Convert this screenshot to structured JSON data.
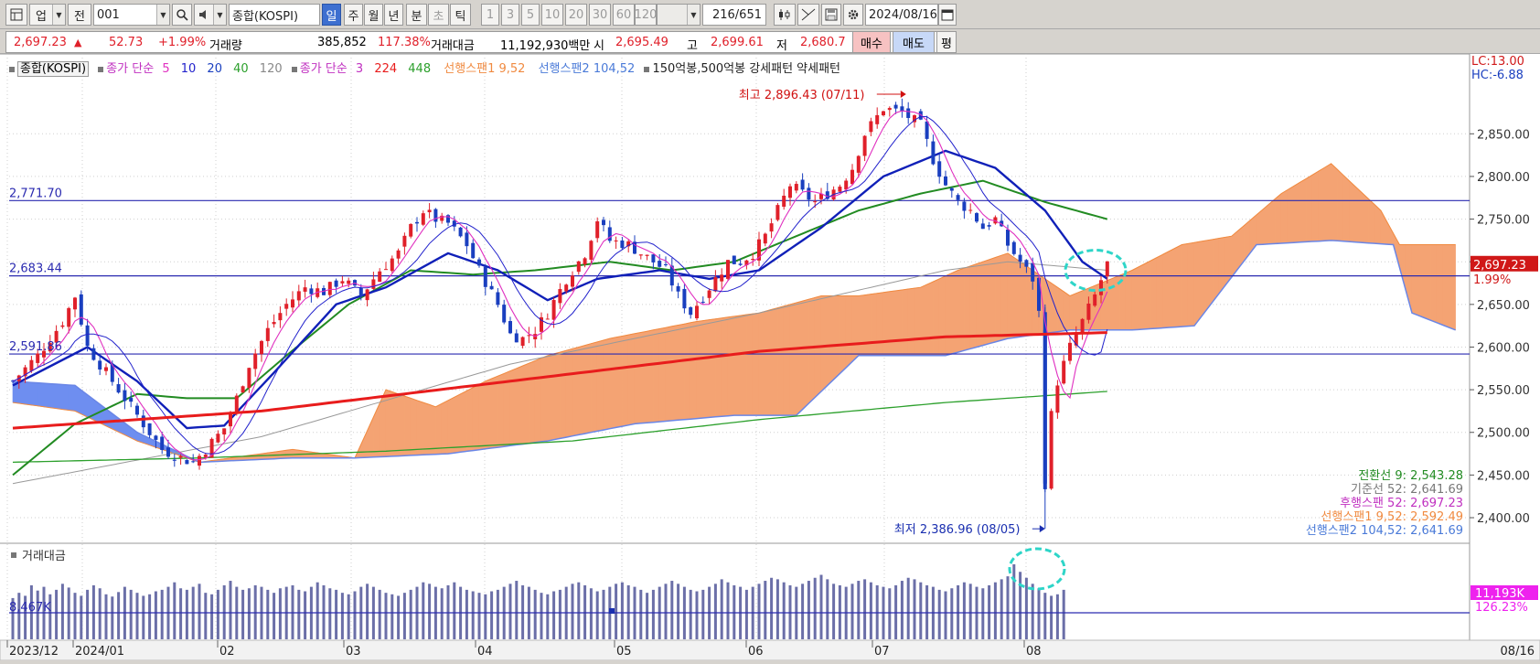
{
  "toolbar": {
    "market_label": "업",
    "view_label": "전",
    "code_value": "001",
    "name_value": "종합(KOSPI)",
    "periods": [
      "일",
      "주",
      "월",
      "년",
      "분",
      "초",
      "틱"
    ],
    "intervals": [
      "1",
      "3",
      "5",
      "10",
      "20",
      "30",
      "60",
      "120"
    ],
    "count_label": "216/651",
    "date_value": "2024/08/16"
  },
  "quote": {
    "price": "2,697.23",
    "up_arrow": "▲",
    "change": "52.73",
    "change_pct": "+1.99%",
    "volume_label": "거래량",
    "volume_value": "385,852",
    "volume_ratio": "117.38%",
    "amount_label": "거래대금",
    "amount_value": "11,192,930백만",
    "open_label": "시",
    "open_value": "2,695.49",
    "high_label": "고",
    "high_value": "2,699.61",
    "low_label": "저",
    "low_value": "2,680.7",
    "buy_label": "매수",
    "sell_label": "매도",
    "eval_label": "평"
  },
  "legend": {
    "index_name": "종합(KOSPI)",
    "ma_close_label": "종가 단순",
    "ma_short": [
      "5",
      "10",
      "20",
      "40",
      "120"
    ],
    "ma_close_label2": "종가 단순",
    "ma_long": [
      "3",
      "224",
      "448"
    ],
    "span1": "선행스팬1 9,52",
    "span2": "선행스팬2 104,52",
    "pattern": "150억봉,500억봉 강세패턴 약세패턴"
  },
  "corner": {
    "lc": "LC:13.00",
    "hc": "HC:-6.88"
  },
  "annotations": {
    "high": "최고 2,896.43 (07/11)",
    "low": "최저 2,386.96 (08/05)",
    "line1": "2,771.70",
    "line2": "2,683.44",
    "line3": "2,591.86"
  },
  "ichimoku_values": [
    "전환선 9: 2,543.28",
    "기준선 52: 2,641.69",
    "후행스팬 52: 2,697.23",
    "선행스팬1 9,52: 2,592.49",
    "선행스팬2 104,52: 2,641.69"
  ],
  "price_badge": {
    "value": "2,697.23",
    "pct": "1.99%"
  },
  "volume_panel": {
    "title": "거래대금",
    "ref_label": "8,467K",
    "badge_value": "11,193K",
    "badge_pct": "126.23%"
  },
  "colors": {
    "up": "#e0202a",
    "down": "#1a3fbf",
    "cloud_orange": "#f4a373",
    "cloud_blue": "#6e8ef0",
    "ma224": "#e81c1c",
    "ma448": "#2ca02c",
    "volume_bar": "#6b6fa8",
    "highlight": "#2ed5c8"
  },
  "chart_data": {
    "type": "candlestick",
    "x_tick_labels": [
      "2023/12",
      "2024/01",
      "02",
      "03",
      "04",
      "05",
      "06",
      "07",
      "08",
      "08/16"
    ],
    "y_tick_labels": [
      "2,850.00",
      "2,800.00",
      "2,750.00",
      "2,700.00",
      "2,650.00",
      "2,600.00",
      "2,550.00",
      "2,500.00",
      "2,450.00",
      "2,400.00"
    ],
    "ylim": [
      2370,
      2920
    ],
    "horizontal_lines": [
      2771.7,
      2683.44,
      2591.86
    ],
    "close_path": [
      [
        0,
        2560
      ],
      [
        4,
        2590
      ],
      [
        8,
        2630
      ],
      [
        10,
        2660
      ],
      [
        12,
        2600
      ],
      [
        16,
        2560
      ],
      [
        20,
        2520
      ],
      [
        24,
        2480
      ],
      [
        27,
        2470
      ],
      [
        29,
        2465
      ],
      [
        31,
        2480
      ],
      [
        34,
        2505
      ],
      [
        36,
        2540
      ],
      [
        38,
        2580
      ],
      [
        41,
        2620
      ],
      [
        44,
        2650
      ],
      [
        47,
        2670
      ],
      [
        50,
        2665
      ],
      [
        53,
        2680
      ],
      [
        56,
        2660
      ],
      [
        59,
        2690
      ],
      [
        62,
        2710
      ],
      [
        64,
        2740
      ],
      [
        66,
        2760
      ],
      [
        68,
        2750
      ],
      [
        70,
        2745
      ],
      [
        73,
        2720
      ],
      [
        75,
        2690
      ],
      [
        78,
        2650
      ],
      [
        80,
        2615
      ],
      [
        82,
        2610
      ],
      [
        84,
        2620
      ],
      [
        86,
        2640
      ],
      [
        89,
        2680
      ],
      [
        92,
        2710
      ],
      [
        94,
        2750
      ],
      [
        96,
        2725
      ],
      [
        99,
        2720
      ],
      [
        101,
        2710
      ],
      [
        103,
        2700
      ],
      [
        105,
        2690
      ],
      [
        107,
        2660
      ],
      [
        109,
        2640
      ],
      [
        111,
        2660
      ],
      [
        113,
        2680
      ],
      [
        115,
        2700
      ],
      [
        117,
        2700
      ],
      [
        119,
        2710
      ],
      [
        121,
        2730
      ],
      [
        123,
        2760
      ],
      [
        125,
        2790
      ],
      [
        127,
        2780
      ],
      [
        129,
        2770
      ],
      [
        131,
        2780
      ],
      [
        133,
        2790
      ],
      [
        135,
        2810
      ],
      [
        137,
        2850
      ],
      [
        140,
        2880
      ],
      [
        143,
        2875
      ],
      [
        146,
        2860
      ],
      [
        148,
        2820
      ],
      [
        150,
        2790
      ],
      [
        152,
        2770
      ],
      [
        154,
        2760
      ],
      [
        156,
        2740
      ],
      [
        158,
        2750
      ],
      [
        160,
        2720
      ],
      [
        162,
        2700
      ],
      [
        164,
        2680
      ],
      [
        165,
        2640
      ],
      [
        166,
        2440
      ],
      [
        167,
        2520
      ],
      [
        168,
        2560
      ],
      [
        170,
        2600
      ],
      [
        172,
        2630
      ],
      [
        174,
        2660
      ],
      [
        176,
        2697.23
      ]
    ],
    "ma_224": [
      [
        0,
        2505
      ],
      [
        40,
        2525
      ],
      [
        80,
        2560
      ],
      [
        120,
        2595
      ],
      [
        150,
        2612
      ],
      [
        176,
        2617
      ]
    ],
    "ma_448": [
      [
        0,
        2465
      ],
      [
        30,
        2470
      ],
      [
        60,
        2478
      ],
      [
        90,
        2490
      ],
      [
        120,
        2515
      ],
      [
        150,
        2535
      ],
      [
        176,
        2548
      ]
    ],
    "ma_20": [
      [
        0,
        2555
      ],
      [
        12,
        2600
      ],
      [
        20,
        2560
      ],
      [
        28,
        2505
      ],
      [
        34,
        2508
      ],
      [
        42,
        2570
      ],
      [
        52,
        2650
      ],
      [
        60,
        2670
      ],
      [
        70,
        2710
      ],
      [
        78,
        2690
      ],
      [
        86,
        2655
      ],
      [
        94,
        2680
      ],
      [
        104,
        2690
      ],
      [
        112,
        2680
      ],
      [
        120,
        2690
      ],
      [
        130,
        2740
      ],
      [
        140,
        2800
      ],
      [
        150,
        2830
      ],
      [
        158,
        2810
      ],
      [
        166,
        2760
      ],
      [
        172,
        2700
      ],
      [
        176,
        2680
      ]
    ],
    "ma_40": [
      [
        0,
        2450
      ],
      [
        10,
        2510
      ],
      [
        20,
        2545
      ],
      [
        28,
        2540
      ],
      [
        36,
        2540
      ],
      [
        44,
        2590
      ],
      [
        54,
        2650
      ],
      [
        64,
        2690
      ],
      [
        74,
        2685
      ],
      [
        84,
        2690
      ],
      [
        96,
        2700
      ],
      [
        106,
        2690
      ],
      [
        116,
        2700
      ],
      [
        126,
        2730
      ],
      [
        136,
        2760
      ],
      [
        146,
        2780
      ],
      [
        156,
        2795
      ],
      [
        166,
        2770
      ],
      [
        176,
        2750
      ]
    ],
    "ma_120": [
      [
        0,
        2440
      ],
      [
        40,
        2495
      ],
      [
        80,
        2580
      ],
      [
        120,
        2640
      ],
      [
        150,
        2690
      ],
      [
        160,
        2700
      ],
      [
        176,
        2690
      ]
    ],
    "span1": [
      [
        0,
        2535
      ],
      [
        10,
        2525
      ],
      [
        20,
        2490
      ],
      [
        30,
        2465
      ],
      [
        45,
        2480
      ],
      [
        55,
        2470
      ],
      [
        60,
        2550
      ],
      [
        68,
        2530
      ],
      [
        76,
        2560
      ],
      [
        86,
        2590
      ],
      [
        96,
        2610
      ],
      [
        110,
        2630
      ],
      [
        120,
        2640
      ],
      [
        130,
        2660
      ],
      [
        136,
        2660
      ],
      [
        146,
        2670
      ],
      [
        152,
        2690
      ],
      [
        160,
        2710
      ],
      [
        170,
        2660
      ],
      [
        180,
        2690
      ],
      [
        188,
        2720
      ],
      [
        196,
        2730
      ],
      [
        204,
        2780
      ],
      [
        212,
        2815
      ],
      [
        220,
        2760
      ],
      [
        223,
        2720
      ]
    ],
    "span2": [
      [
        0,
        2560
      ],
      [
        10,
        2555
      ],
      [
        20,
        2500
      ],
      [
        30,
        2465
      ],
      [
        45,
        2470
      ],
      [
        55,
        2470
      ],
      [
        70,
        2475
      ],
      [
        86,
        2490
      ],
      [
        100,
        2510
      ],
      [
        116,
        2520
      ],
      [
        126,
        2520
      ],
      [
        136,
        2590
      ],
      [
        150,
        2590
      ],
      [
        160,
        2610
      ],
      [
        170,
        2620
      ],
      [
        180,
        2620
      ],
      [
        190,
        2625
      ],
      [
        200,
        2720
      ],
      [
        212,
        2725
      ],
      [
        222,
        2720
      ],
      [
        225,
        2640
      ],
      [
        232,
        2620
      ]
    ],
    "volume_bars_relative": [
      0.55,
      0.62,
      0.58,
      0.72,
      0.65,
      0.7,
      0.6,
      0.66,
      0.74,
      0.69,
      0.62,
      0.58,
      0.66,
      0.72,
      0.68,
      0.6,
      0.57,
      0.63,
      0.7,
      0.66,
      0.62,
      0.58,
      0.6,
      0.64,
      0.66,
      0.7,
      0.76,
      0.68,
      0.66,
      0.7,
      0.74,
      0.62,
      0.6,
      0.66,
      0.72,
      0.78,
      0.7,
      0.66,
      0.68,
      0.72,
      0.7,
      0.66,
      0.62,
      0.68,
      0.7,
      0.72,
      0.66,
      0.64,
      0.7,
      0.76,
      0.72,
      0.68,
      0.66,
      0.62,
      0.6,
      0.64,
      0.7,
      0.74,
      0.7,
      0.66,
      0.62,
      0.6,
      0.58,
      0.62,
      0.66,
      0.7,
      0.76,
      0.74,
      0.7,
      0.68,
      0.72,
      0.76,
      0.7,
      0.66,
      0.64,
      0.62,
      0.6,
      0.64,
      0.66,
      0.7,
      0.74,
      0.78,
      0.72,
      0.7,
      0.66,
      0.62,
      0.6,
      0.64,
      0.66,
      0.7,
      0.74,
      0.76,
      0.72,
      0.68,
      0.64,
      0.66,
      0.7,
      0.74,
      0.76,
      0.72,
      0.7,
      0.66,
      0.62,
      0.66,
      0.7,
      0.74,
      0.78,
      0.74,
      0.7,
      0.66,
      0.64,
      0.66,
      0.7,
      0.74,
      0.8,
      0.76,
      0.72,
      0.7,
      0.66,
      0.7,
      0.74,
      0.78,
      0.82,
      0.8,
      0.76,
      0.72,
      0.7,
      0.74,
      0.78,
      0.82,
      0.86,
      0.8,
      0.74,
      0.72,
      0.7,
      0.74,
      0.78,
      0.8,
      0.76,
      0.72,
      0.7,
      0.68,
      0.72,
      0.78,
      0.82,
      0.8,
      0.76,
      0.72,
      0.7,
      0.66,
      0.64,
      0.68,
      0.72,
      0.76,
      0.74,
      0.7,
      0.68,
      0.72,
      0.76,
      0.8,
      0.84,
      1.0,
      0.9,
      0.82,
      0.74,
      0.68,
      0.62,
      0.58,
      0.6,
      0.66
    ]
  }
}
